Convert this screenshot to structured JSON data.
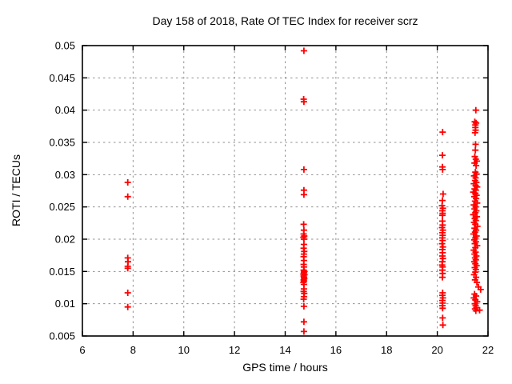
{
  "chart_data": {
    "type": "scatter",
    "title": "Day 158 of 2018, Rate Of TEC Index for receiver scrz",
    "xlabel": "GPS time / hours",
    "ylabel": "ROTI / TECUs",
    "xlim": [
      6,
      22
    ],
    "ylim": [
      0.005,
      0.05
    ],
    "grid": true,
    "legend": "none",
    "marker": "plus",
    "marker_color": "#ff0000",
    "xticks": [
      {
        "v": 6,
        "label": "6"
      },
      {
        "v": 8,
        "label": "8"
      },
      {
        "v": 10,
        "label": "10"
      },
      {
        "v": 12,
        "label": "12"
      },
      {
        "v": 14,
        "label": "14"
      },
      {
        "v": 16,
        "label": "16"
      },
      {
        "v": 18,
        "label": "18"
      },
      {
        "v": 20,
        "label": "20"
      },
      {
        "v": 22,
        "label": "22"
      }
    ],
    "yticks": [
      {
        "v": 0.005,
        "label": "0.005"
      },
      {
        "v": 0.01,
        "label": "0.01"
      },
      {
        "v": 0.015,
        "label": "0.015"
      },
      {
        "v": 0.02,
        "label": "0.02"
      },
      {
        "v": 0.025,
        "label": "0.025"
      },
      {
        "v": 0.03,
        "label": "0.03"
      },
      {
        "v": 0.035,
        "label": "0.035"
      },
      {
        "v": 0.04,
        "label": "0.04"
      },
      {
        "v": 0.045,
        "label": "0.045"
      },
      {
        "v": 0.05,
        "label": "0.05"
      }
    ],
    "series": [
      {
        "name": "ROTI",
        "points": [
          [
            7.79,
            0.0288
          ],
          [
            7.79,
            0.0266
          ],
          [
            7.79,
            0.0171
          ],
          [
            7.8,
            0.0165
          ],
          [
            7.79,
            0.0158
          ],
          [
            7.79,
            0.0155
          ],
          [
            7.79,
            0.0117
          ],
          [
            7.79,
            0.0095
          ],
          [
            14.74,
            0.0492
          ],
          [
            14.73,
            0.0417
          ],
          [
            14.74,
            0.0413
          ],
          [
            14.74,
            0.0308
          ],
          [
            14.74,
            0.0276
          ],
          [
            14.74,
            0.0269
          ],
          [
            14.73,
            0.0223
          ],
          [
            14.74,
            0.0214
          ],
          [
            14.73,
            0.0208
          ],
          [
            14.75,
            0.0205
          ],
          [
            14.72,
            0.0203
          ],
          [
            14.74,
            0.02
          ],
          [
            14.74,
            0.0192
          ],
          [
            14.73,
            0.0186
          ],
          [
            14.75,
            0.0181
          ],
          [
            14.74,
            0.0177
          ],
          [
            14.73,
            0.0173
          ],
          [
            14.74,
            0.0167
          ],
          [
            14.73,
            0.0161
          ],
          [
            14.74,
            0.0157
          ],
          [
            14.73,
            0.0152
          ],
          [
            14.75,
            0.015
          ],
          [
            14.74,
            0.0148
          ],
          [
            14.72,
            0.0146
          ],
          [
            14.76,
            0.0145
          ],
          [
            14.73,
            0.0143
          ],
          [
            14.74,
            0.0141
          ],
          [
            14.75,
            0.0139
          ],
          [
            14.73,
            0.0137
          ],
          [
            14.74,
            0.0135
          ],
          [
            14.72,
            0.0133
          ],
          [
            14.74,
            0.013
          ],
          [
            14.74,
            0.0123
          ],
          [
            14.73,
            0.0119
          ],
          [
            14.75,
            0.0116
          ],
          [
            14.74,
            0.0111
          ],
          [
            14.73,
            0.0107
          ],
          [
            14.74,
            0.0096
          ],
          [
            14.74,
            0.0072
          ],
          [
            14.74,
            0.0057
          ],
          [
            20.21,
            0.0366
          ],
          [
            20.2,
            0.033
          ],
          [
            20.2,
            0.0312
          ],
          [
            20.21,
            0.0308
          ],
          [
            20.23,
            0.027
          ],
          [
            20.2,
            0.026
          ],
          [
            20.19,
            0.0252
          ],
          [
            20.22,
            0.0248
          ],
          [
            20.2,
            0.0244
          ],
          [
            20.21,
            0.024
          ],
          [
            20.2,
            0.0237
          ],
          [
            20.2,
            0.0228
          ],
          [
            20.21,
            0.0222
          ],
          [
            20.19,
            0.0218
          ],
          [
            20.22,
            0.0214
          ],
          [
            20.2,
            0.021
          ],
          [
            20.21,
            0.0206
          ],
          [
            20.2,
            0.0202
          ],
          [
            20.21,
            0.0198
          ],
          [
            20.19,
            0.0193
          ],
          [
            20.22,
            0.0188
          ],
          [
            20.2,
            0.0184
          ],
          [
            20.21,
            0.0179
          ],
          [
            20.2,
            0.0174
          ],
          [
            20.22,
            0.017
          ],
          [
            20.2,
            0.0165
          ],
          [
            20.19,
            0.016
          ],
          [
            20.21,
            0.0157
          ],
          [
            20.2,
            0.0152
          ],
          [
            20.21,
            0.0147
          ],
          [
            20.2,
            0.0141
          ],
          [
            20.21,
            0.0117
          ],
          [
            20.2,
            0.0113
          ],
          [
            20.22,
            0.0109
          ],
          [
            20.2,
            0.0105
          ],
          [
            20.21,
            0.0101
          ],
          [
            20.2,
            0.0097
          ],
          [
            20.21,
            0.0093
          ],
          [
            20.21,
            0.0078
          ],
          [
            20.22,
            0.0067
          ],
          [
            21.52,
            0.04
          ],
          [
            21.48,
            0.0382
          ],
          [
            21.53,
            0.038
          ],
          [
            21.5,
            0.0377
          ],
          [
            21.5,
            0.0373
          ],
          [
            21.51,
            0.0369
          ],
          [
            21.49,
            0.0365
          ],
          [
            21.51,
            0.0347
          ],
          [
            21.5,
            0.0338
          ],
          [
            21.48,
            0.0328
          ],
          [
            21.52,
            0.0324
          ],
          [
            21.56,
            0.0321
          ],
          [
            21.47,
            0.0318
          ],
          [
            21.53,
            0.0314
          ],
          [
            21.5,
            0.0304
          ],
          [
            21.55,
            0.0301
          ],
          [
            21.45,
            0.0298
          ],
          [
            21.51,
            0.0295
          ],
          [
            21.49,
            0.0291
          ],
          [
            21.54,
            0.0288
          ],
          [
            21.44,
            0.0286
          ],
          [
            21.51,
            0.0283
          ],
          [
            21.57,
            0.0281
          ],
          [
            21.47,
            0.0278
          ],
          [
            21.52,
            0.0276
          ],
          [
            21.42,
            0.0273
          ],
          [
            21.5,
            0.0271
          ],
          [
            21.55,
            0.0268
          ],
          [
            21.46,
            0.0266
          ],
          [
            21.53,
            0.0263
          ],
          [
            21.49,
            0.0259
          ],
          [
            21.57,
            0.0256
          ],
          [
            21.44,
            0.0253
          ],
          [
            21.51,
            0.025
          ],
          [
            21.47,
            0.0247
          ],
          [
            21.54,
            0.0244
          ],
          [
            21.5,
            0.0241
          ],
          [
            21.42,
            0.0238
          ],
          [
            21.56,
            0.0235
          ],
          [
            21.48,
            0.0232
          ],
          [
            21.52,
            0.0229
          ],
          [
            21.45,
            0.0226
          ],
          [
            21.5,
            0.0223
          ],
          [
            21.58,
            0.022
          ],
          [
            21.47,
            0.0217
          ],
          [
            21.53,
            0.0214
          ],
          [
            21.49,
            0.0211
          ],
          [
            21.43,
            0.0208
          ],
          [
            21.55,
            0.0205
          ],
          [
            21.5,
            0.0202
          ],
          [
            21.46,
            0.0199
          ],
          [
            21.52,
            0.0196
          ],
          [
            21.48,
            0.0193
          ],
          [
            21.57,
            0.019
          ],
          [
            21.5,
            0.0187
          ],
          [
            21.44,
            0.0183
          ],
          [
            21.51,
            0.018
          ],
          [
            21.47,
            0.0177
          ],
          [
            21.54,
            0.0174
          ],
          [
            21.49,
            0.0171
          ],
          [
            21.52,
            0.0168
          ],
          [
            21.46,
            0.0165
          ],
          [
            21.5,
            0.0162
          ],
          [
            21.55,
            0.0159
          ],
          [
            21.48,
            0.0156
          ],
          [
            21.52,
            0.0153
          ],
          [
            21.5,
            0.0149
          ],
          [
            21.45,
            0.0145
          ],
          [
            21.53,
            0.0141
          ],
          [
            21.49,
            0.0137
          ],
          [
            21.56,
            0.0133
          ],
          [
            21.62,
            0.0126
          ],
          [
            21.71,
            0.0122
          ],
          [
            21.47,
            0.0115
          ],
          [
            21.53,
            0.0112
          ],
          [
            21.44,
            0.0109
          ],
          [
            21.5,
            0.0106
          ],
          [
            21.57,
            0.0103
          ],
          [
            21.48,
            0.01
          ],
          [
            21.51,
            0.0097
          ],
          [
            21.54,
            0.0094
          ],
          [
            21.49,
            0.0092
          ],
          [
            21.67,
            0.009
          ],
          [
            21.52,
            0.0089
          ]
        ]
      }
    ],
    "colors": {
      "marker": "#ff0000",
      "grid": "#909090",
      "border": "#000000",
      "background": "#ffffff",
      "text": "#000000"
    }
  }
}
